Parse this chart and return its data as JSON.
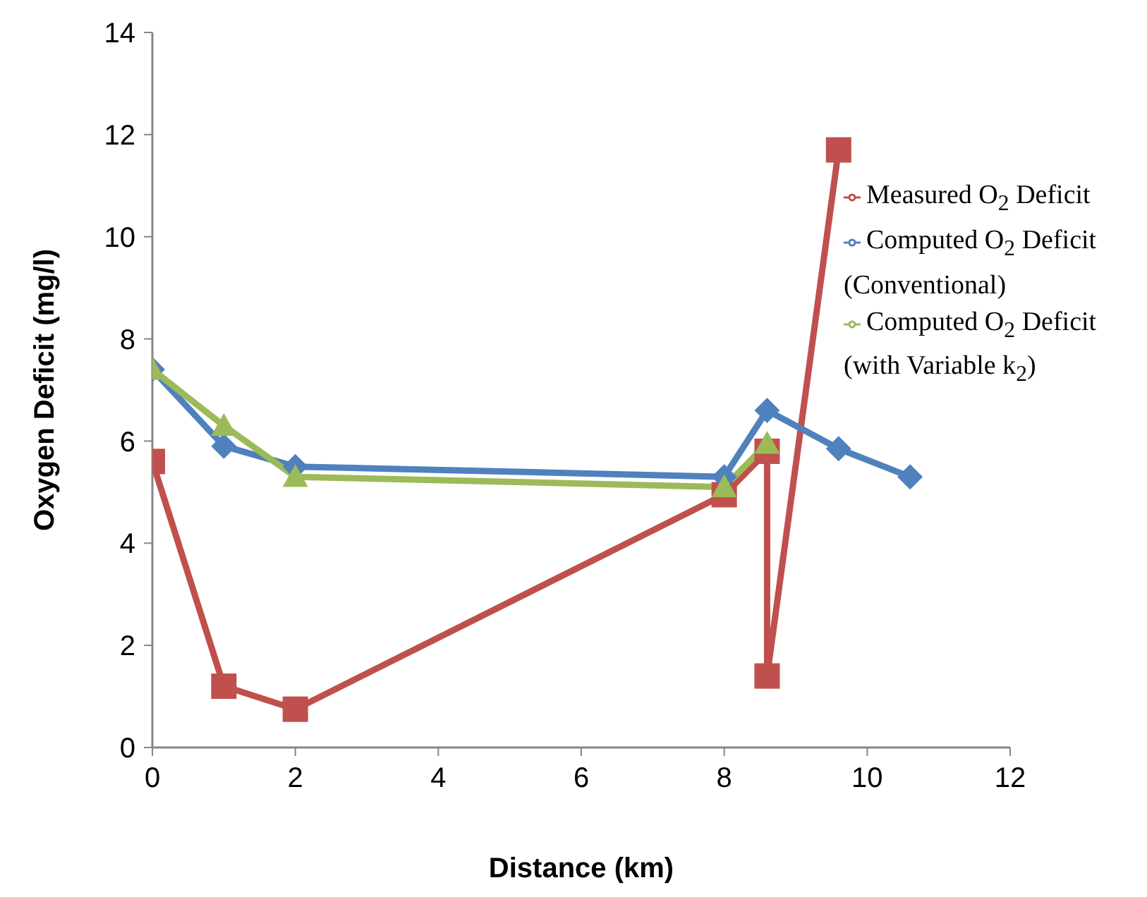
{
  "chart_data": {
    "type": "line",
    "xlabel": "Distance (km)",
    "ylabel": "Oxygen Deficit (mg/l)",
    "xlim": [
      0,
      12
    ],
    "xticks": [
      0,
      2,
      4,
      6,
      8,
      10,
      12
    ],
    "ylim": [
      0,
      14
    ],
    "yticks": [
      0,
      2,
      4,
      6,
      8,
      10,
      12,
      14
    ],
    "grid": false,
    "legend": "right",
    "line_style": "solid",
    "series": [
      {
        "name": "Measured O$_{2}$ Deficit",
        "color": "#c0504d",
        "marker": "square",
        "x": [
          0,
          1,
          2,
          8,
          8.6,
          8.6,
          9.6
        ],
        "values": [
          5.6,
          1.2,
          0.75,
          4.95,
          5.8,
          1.4,
          11.7
        ]
      },
      {
        "name": "Computed O$_{2}$ Deficit (Conventional)",
        "color": "#4f81bd",
        "marker": "diamond",
        "x": [
          0,
          1,
          2,
          8,
          8.6,
          9.6,
          10.6
        ],
        "values": [
          7.4,
          5.9,
          5.5,
          5.3,
          6.6,
          5.85,
          5.3
        ]
      },
      {
        "name": "Computed O$_{2}$ Deficit (with Variable k$_{2}$)",
        "color": "#9bbb59",
        "marker": "triangle",
        "x": [
          0,
          1,
          2,
          8,
          8.6
        ],
        "values": [
          7.4,
          6.3,
          5.3,
          5.1,
          5.95
        ]
      }
    ]
  }
}
